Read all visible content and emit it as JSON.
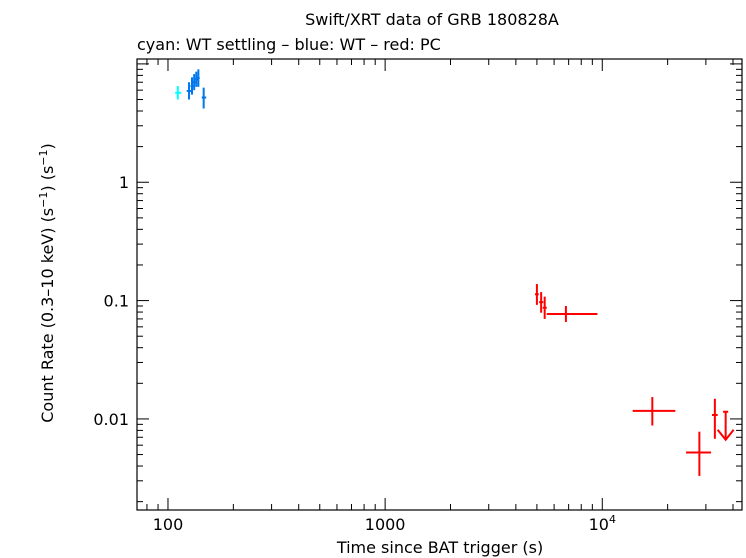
{
  "chart_data": {
    "type": "scatter",
    "title": "Swift/XRT data of GRB 180828A",
    "subtitle": "cyan: WT settling – blue: WT – red: PC",
    "xlabel": "Time since BAT trigger (s)",
    "ylabel_main": "Count Rate (0.3–10 keV) (s",
    "ylabel_sup1": "−1",
    "ylabel_mid": ") (s",
    "ylabel_sup2": "−1",
    "ylabel_end": ")",
    "x_scale": "log",
    "y_scale": "log",
    "xlim": [
      72,
      44000
    ],
    "ylim": [
      0.0017,
      11
    ],
    "x_ticks": [
      {
        "value": 100,
        "label": "100"
      },
      {
        "value": 1000,
        "label": "1000"
      },
      {
        "value": 10000,
        "label": "10",
        "sup": "4"
      }
    ],
    "y_ticks": [
      {
        "value": 1,
        "label": "1"
      },
      {
        "value": 0.1,
        "label": "0.1"
      },
      {
        "value": 0.01,
        "label": "0.01"
      }
    ],
    "series": [
      {
        "mode": "WT settling",
        "color": "#00ffff",
        "points": [
          {
            "x": 111,
            "xlo": 108,
            "xhi": 115,
            "y": 5.7,
            "ylo": 5.0,
            "yhi": 6.5
          }
        ]
      },
      {
        "mode": "WT",
        "color": "#0077ee",
        "points": [
          {
            "x": 125,
            "xlo": 122,
            "xhi": 128,
            "y": 5.9,
            "ylo": 5.0,
            "yhi": 7.0
          },
          {
            "x": 129,
            "xlo": 127,
            "xhi": 131,
            "y": 6.5,
            "ylo": 5.5,
            "yhi": 7.7
          },
          {
            "x": 132,
            "xlo": 130,
            "xhi": 134,
            "y": 7.0,
            "ylo": 6.0,
            "yhi": 8.2
          },
          {
            "x": 135,
            "xlo": 133,
            "xhi": 137,
            "y": 7.4,
            "ylo": 6.4,
            "yhi": 8.6
          },
          {
            "x": 138,
            "xlo": 136,
            "xhi": 140,
            "y": 7.6,
            "ylo": 6.4,
            "yhi": 9.0
          },
          {
            "x": 146,
            "xlo": 143,
            "xhi": 150,
            "y": 5.2,
            "ylo": 4.2,
            "yhi": 6.3
          }
        ]
      },
      {
        "mode": "PC",
        "color": "#ff0000",
        "points": [
          {
            "x": 5000,
            "xlo": 4900,
            "xhi": 5100,
            "y": 0.113,
            "ylo": 0.092,
            "yhi": 0.138
          },
          {
            "x": 5230,
            "xlo": 5120,
            "xhi": 5350,
            "y": 0.097,
            "ylo": 0.079,
            "yhi": 0.118
          },
          {
            "x": 5430,
            "xlo": 5320,
            "xhi": 5550,
            "y": 0.087,
            "ylo": 0.07,
            "yhi": 0.108
          },
          {
            "x": 6800,
            "xlo": 5550,
            "xhi": 9500,
            "y": 0.077,
            "ylo": 0.066,
            "yhi": 0.09
          },
          {
            "x": 17000,
            "xlo": 13800,
            "xhi": 21700,
            "y": 0.0117,
            "ylo": 0.0088,
            "yhi": 0.0153
          },
          {
            "x": 28000,
            "xlo": 24300,
            "xhi": 31700,
            "y": 0.0052,
            "ylo": 0.0033,
            "yhi": 0.0078
          },
          {
            "x": 33000,
            "xlo": 32000,
            "xhi": 34000,
            "y": 0.0108,
            "ylo": 0.0068,
            "yhi": 0.0148
          }
        ],
        "upper_limits": [
          {
            "x": 37000,
            "xlo": 36000,
            "xhi": 38000,
            "y": 0.0115
          }
        ]
      }
    ]
  }
}
